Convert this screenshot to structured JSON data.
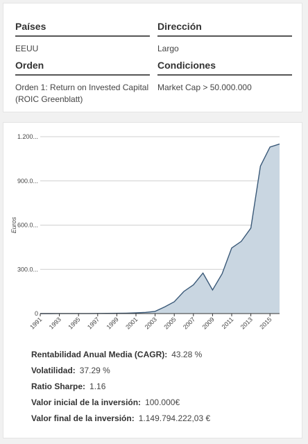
{
  "info": {
    "paises": {
      "label": "Países",
      "value": "EEUU"
    },
    "direccion": {
      "label": "Dirección",
      "value": "Largo"
    },
    "orden": {
      "label": "Orden",
      "value": "Orden 1: Return on Invested Capital (ROIC Greenblatt)"
    },
    "condiciones": {
      "label": "Condiciones",
      "value": "Market Cap > 50.000.000"
    }
  },
  "chart_data": {
    "type": "area",
    "title": "",
    "xlabel": "",
    "ylabel": "Euros",
    "ylim": [
      0,
      1200
    ],
    "yticks": [
      0,
      300,
      600,
      900,
      1200
    ],
    "ytick_labels": [
      "0",
      "300.0...",
      "600.0...",
      "900.0...",
      "1.200..."
    ],
    "xticks": [
      1991,
      1993,
      1995,
      1997,
      1999,
      2001,
      2003,
      2005,
      2007,
      2009,
      2011,
      2013,
      2015
    ],
    "xlim": [
      1991,
      2016
    ],
    "grid": true,
    "x": [
      1991,
      1992,
      1993,
      1994,
      1995,
      1996,
      1997,
      1998,
      1999,
      2000,
      2001,
      2002,
      2003,
      2004,
      2005,
      2006,
      2007,
      2008,
      2009,
      2010,
      2011,
      2012,
      2013,
      2014,
      2015,
      2016
    ],
    "values": [
      0.1,
      0.2,
      0.3,
      0.4,
      0.5,
      0.7,
      1,
      1.5,
      2,
      3,
      5,
      8,
      15,
      45,
      80,
      150,
      195,
      275,
      160,
      270,
      445,
      490,
      580,
      1000,
      1130,
      1150
    ],
    "fill": "#c9d6e1",
    "line": "#3a5978"
  },
  "stats": {
    "cagr": {
      "label": "Rentabilidad Anual Media (CAGR):",
      "value": "43.28 %"
    },
    "vol": {
      "label": "Volatilidad:",
      "value": "37.29 %"
    },
    "sharpe": {
      "label": "Ratio Sharpe:",
      "value": "1.16"
    },
    "inicial": {
      "label": "Valor inicial de la inversión:",
      "value": "100.000€"
    },
    "final": {
      "label": "Valor final de la inversión:",
      "value": "1.149.794.222,03 €"
    }
  }
}
